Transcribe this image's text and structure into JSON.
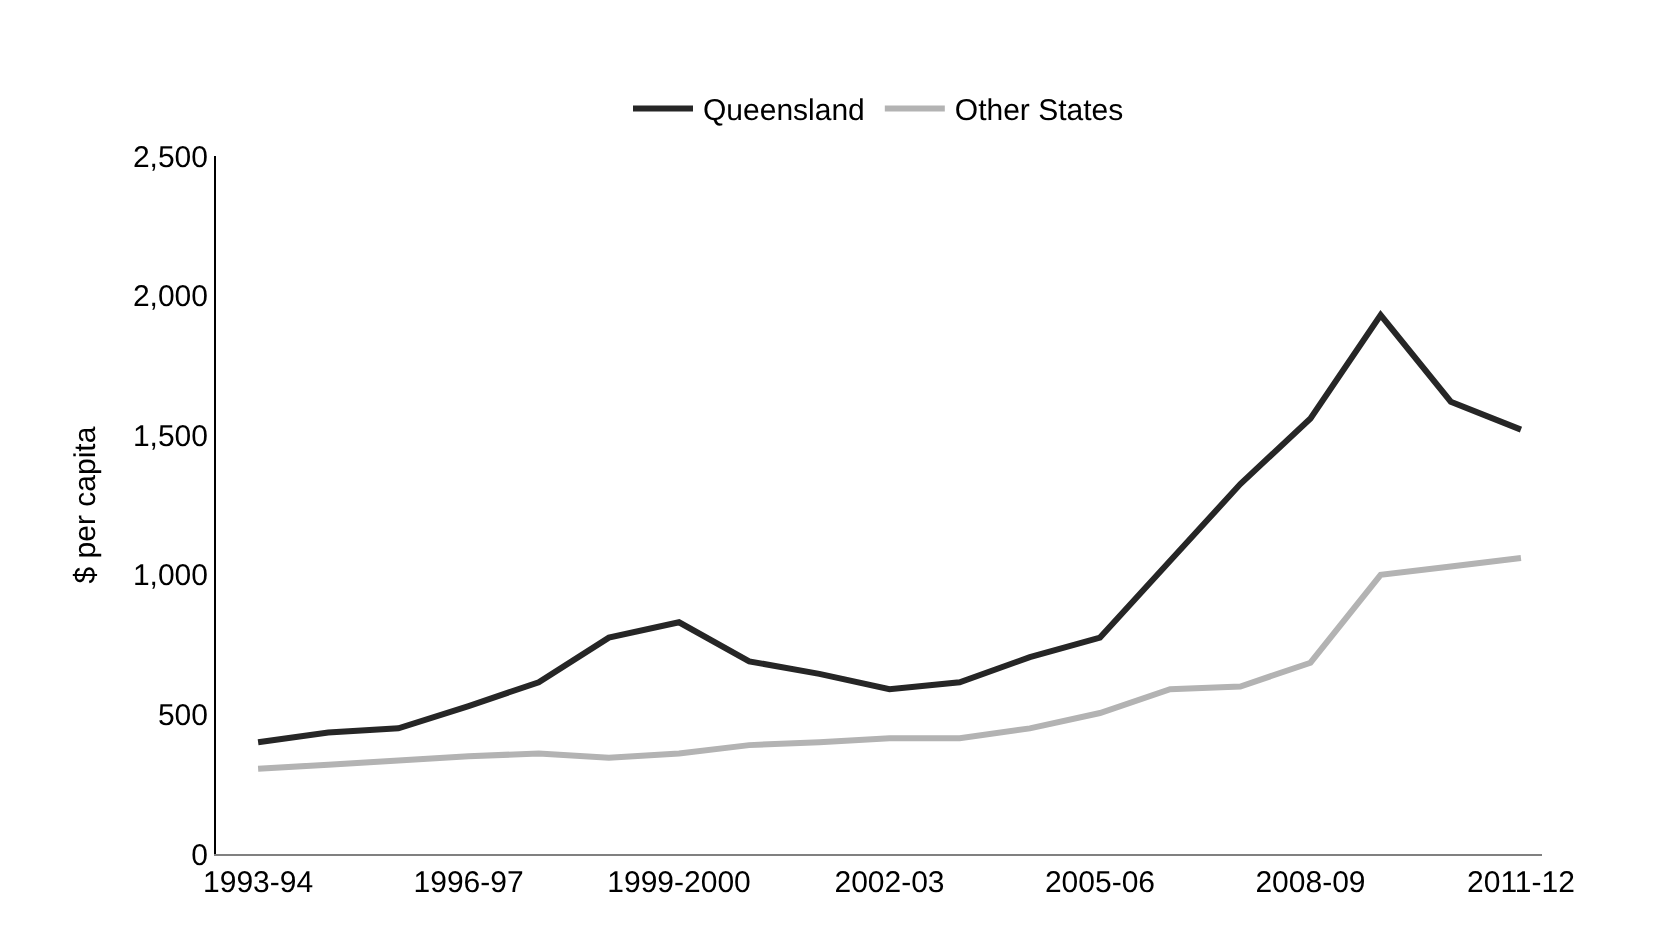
{
  "chart_data": {
    "type": "line",
    "ylabel": "$ per capita",
    "categories": [
      "1993-94",
      null,
      null,
      "1996-97",
      null,
      null,
      "1999-2000",
      null,
      null,
      "2002-03",
      null,
      null,
      "2005-06",
      null,
      null,
      "2008-09",
      null,
      null,
      "2011-12"
    ],
    "series": [
      {
        "name": "Queensland",
        "color": "#262626",
        "values": [
          400,
          435,
          450,
          530,
          615,
          775,
          830,
          690,
          645,
          590,
          615,
          705,
          775,
          1050,
          1325,
          1560,
          1930,
          1620,
          1520
        ]
      },
      {
        "name": "Other States",
        "color": "#b3b3b3",
        "values": [
          305,
          320,
          335,
          350,
          360,
          345,
          360,
          390,
          400,
          415,
          415,
          450,
          505,
          590,
          600,
          685,
          1000,
          1030,
          1060
        ]
      }
    ],
    "ylim": [
      0,
      2500
    ],
    "yticks": [
      0,
      {
        "value": 500,
        "label": "500"
      },
      {
        "value": 1000,
        "label": "1,000"
      },
      {
        "value": 1500,
        "label": "1,500"
      },
      {
        "value": 2000,
        "label": "2,000"
      },
      {
        "value": 2500,
        "label": "2,500"
      }
    ],
    "grid": false,
    "legend": "top",
    "marker": "none",
    "line_style": "solid"
  }
}
